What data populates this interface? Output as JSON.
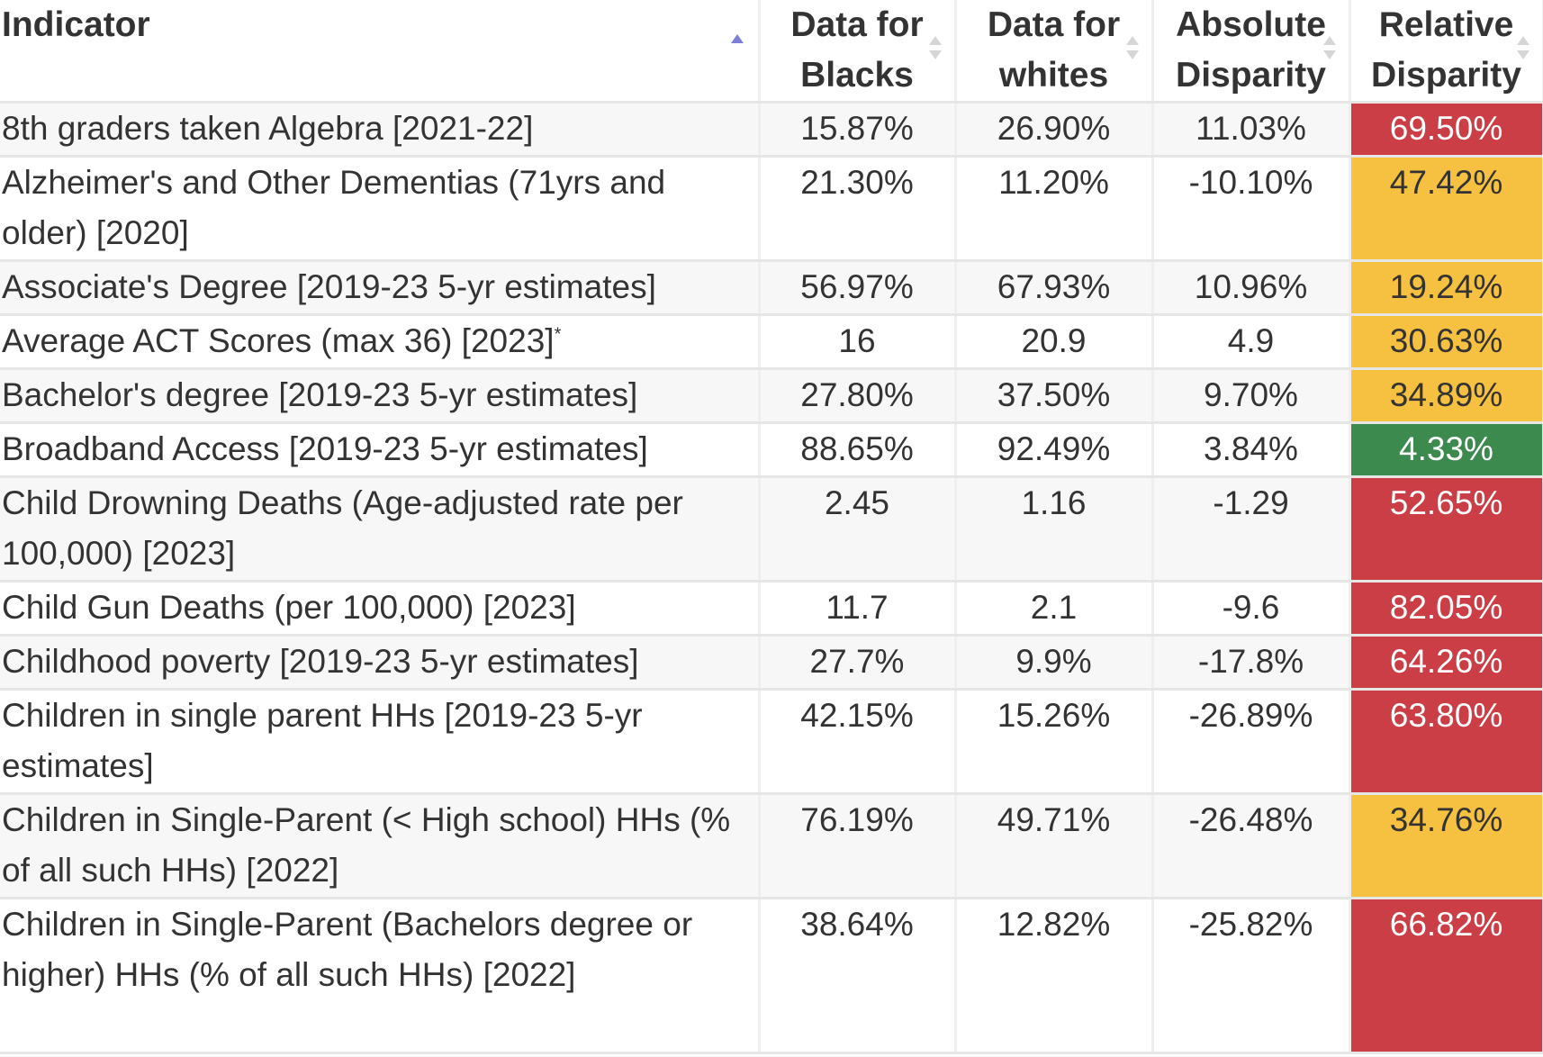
{
  "columns": {
    "indicator": "Indicator",
    "blacks": "Data for Blacks",
    "whites": "Data for whites",
    "absolute": "Absolute Disparity",
    "relative": "Relative Disparity"
  },
  "rows": [
    {
      "indicator": "8th graders taken Algebra [2021-22]",
      "blacks": "15.87%",
      "whites": "26.90%",
      "absolute": "11.03%",
      "relative": "69.50%",
      "level": "red"
    },
    {
      "indicator": "Alzheimer's and Other Dementias (71yrs and older) [2020]",
      "blacks": "21.30%",
      "whites": "11.20%",
      "absolute": "-10.10%",
      "relative": "47.42%",
      "level": "yellow"
    },
    {
      "indicator": "Associate's Degree [2019-23 5-yr estimates]",
      "blacks": "56.97%",
      "whites": "67.93%",
      "absolute": "10.96%",
      "relative": "19.24%",
      "level": "yellow"
    },
    {
      "indicator": "Average ACT Scores (max 36) [2023]",
      "footnote": "*",
      "blacks": "16",
      "whites": "20.9",
      "absolute": "4.9",
      "relative": "30.63%",
      "level": "yellow"
    },
    {
      "indicator": "Bachelor's degree [2019-23 5-yr estimates]",
      "blacks": "27.80%",
      "whites": "37.50%",
      "absolute": "9.70%",
      "relative": "34.89%",
      "level": "yellow"
    },
    {
      "indicator": "Broadband Access [2019-23 5-yr estimates]",
      "blacks": "88.65%",
      "whites": "92.49%",
      "absolute": "3.84%",
      "relative": "4.33%",
      "level": "green"
    },
    {
      "indicator": "Child Drowning Deaths (Age-adjusted rate per 100,000) [2023]",
      "blacks": "2.45",
      "whites": "1.16",
      "absolute": "-1.29",
      "relative": "52.65%",
      "level": "red"
    },
    {
      "indicator": "Child Gun Deaths (per 100,000) [2023]",
      "blacks": "11.7",
      "whites": "2.1",
      "absolute": "-9.6",
      "relative": "82.05%",
      "level": "red"
    },
    {
      "indicator": "Childhood poverty [2019-23 5-yr estimates]",
      "blacks": "27.7%",
      "whites": "9.9%",
      "absolute": "-17.8%",
      "relative": "64.26%",
      "level": "red"
    },
    {
      "indicator": "Children in single parent HHs [2019-23 5-yr estimates]",
      "blacks": "42.15%",
      "whites": "15.26%",
      "absolute": "-26.89%",
      "relative": "63.80%",
      "level": "red"
    },
    {
      "indicator": "Children in Single-Parent (< High school) HHs (% of all such HHs) [2022]",
      "blacks": "76.19%",
      "whites": "49.71%",
      "absolute": "-26.48%",
      "relative": "34.76%",
      "level": "yellow"
    },
    {
      "indicator": "Children in Single-Parent (Bachelors degree or higher) HHs (% of all such HHs) [2022]",
      "blacks": "38.64%",
      "whites": "12.82%",
      "absolute": "-25.82%",
      "relative": "66.82%",
      "level": "red"
    }
  ],
  "colors": {
    "red": "#cc3e46",
    "yellow": "#f6c141",
    "green": "#3d8a4f"
  },
  "sort": {
    "column": "indicator",
    "direction": "ascending"
  }
}
